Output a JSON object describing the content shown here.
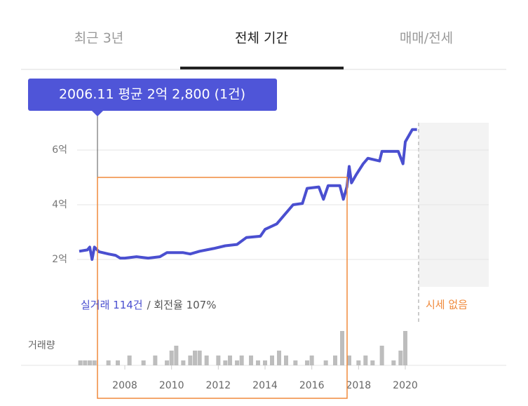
{
  "tabs": [
    "최근 3년",
    "전체 기간",
    "매매/전세"
  ],
  "chart_data": {
    "type": "line",
    "tooltip": "2006.11 평균 2억 2,800 (1건)",
    "series": [
      {
        "name": "실거래 114건",
        "color": "#4a4fd0",
        "x": [
          2006.05,
          2006.4,
          2006.5,
          2006.6,
          2006.7,
          2006.9,
          2007.3,
          2007.6,
          2007.8,
          2008.0,
          2008.5,
          2009.0,
          2009.5,
          2009.8,
          2010.5,
          2010.8,
          2011.2,
          2011.8,
          2012.3,
          2012.8,
          2013.2,
          2013.8,
          2014.0,
          2014.5,
          2014.8,
          2015.2,
          2015.6,
          2015.8,
          2016.3,
          2016.5,
          2016.7,
          2017.2,
          2017.35,
          2017.5,
          2017.6,
          2017.7,
          2017.9,
          2018.2,
          2018.4,
          2018.9,
          2019.0,
          2019.7,
          2019.9,
          2020.0,
          2020.3,
          2020.5
        ],
        "values": [
          2.3,
          2.35,
          2.45,
          2.0,
          2.45,
          2.28,
          2.2,
          2.15,
          2.05,
          2.05,
          2.1,
          2.05,
          2.1,
          2.25,
          2.25,
          2.2,
          2.3,
          2.4,
          2.5,
          2.55,
          2.8,
          2.85,
          3.1,
          3.3,
          3.6,
          4.0,
          4.05,
          4.6,
          4.65,
          4.2,
          4.7,
          4.7,
          4.2,
          4.65,
          5.4,
          4.8,
          5.1,
          5.5,
          5.7,
          5.6,
          5.95,
          5.95,
          5.5,
          6.3,
          6.75,
          6.75
        ]
      }
    ],
    "turnover_label": "/ 회전율 107%",
    "no_price_label": "시세 없음",
    "volume": {
      "label": "거래량",
      "color": "#bdbdbd",
      "x": [
        2006.1,
        2006.3,
        2006.5,
        2006.7,
        2007.3,
        2007.7,
        2008.2,
        2008.8,
        2009.3,
        2009.8,
        2010.0,
        2010.2,
        2010.5,
        2010.8,
        2011.0,
        2011.2,
        2011.5,
        2012.0,
        2012.3,
        2012.5,
        2012.8,
        2013.0,
        2013.4,
        2013.7,
        2014.0,
        2014.3,
        2014.6,
        2014.9,
        2015.3,
        2015.8,
        2016.0,
        2016.6,
        2017.0,
        2017.3,
        2017.6,
        2018.0,
        2018.3,
        2018.6,
        2019.0,
        2019.5,
        2019.8,
        2020.0
      ],
      "values": [
        1,
        1,
        1,
        1,
        1,
        1,
        2,
        1,
        2,
        1,
        3,
        4,
        1,
        2,
        3,
        3,
        2,
        2,
        1,
        2,
        1,
        2,
        2,
        1,
        1,
        2,
        3,
        2,
        1,
        1,
        2,
        1,
        2,
        7,
        2,
        1,
        2,
        1,
        4,
        1,
        3,
        7
      ]
    },
    "xlim": [
      2003.56,
      2024.32
    ],
    "xticks": [
      2008,
      2010,
      2012,
      2014,
      2016,
      2018,
      2020
    ],
    "ylim": [
      1,
      7
    ],
    "yticks": [
      {
        "value": 2,
        "label": "2억"
      },
      {
        "value": 4,
        "label": "4억"
      },
      {
        "value": 6,
        "label": "6억"
      }
    ],
    "grid": true
  }
}
